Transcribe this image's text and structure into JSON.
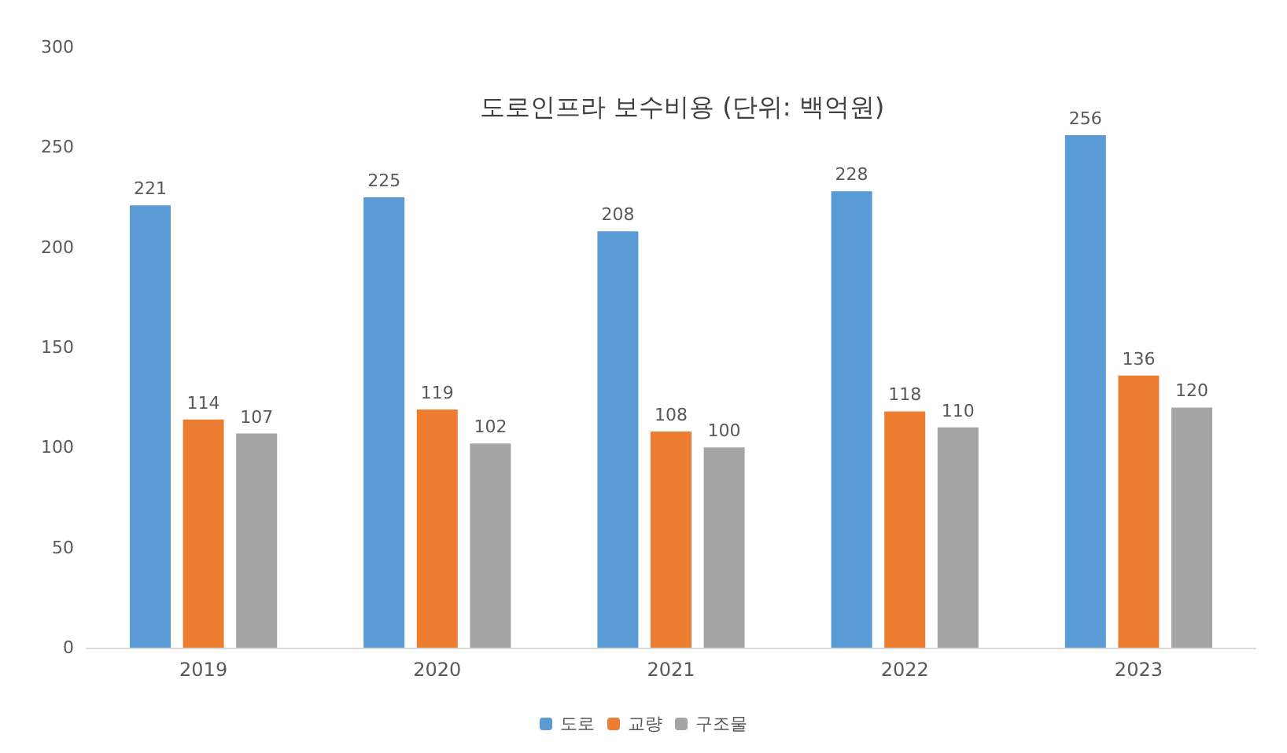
{
  "chart_data": {
    "type": "bar",
    "title": "도로인프라 보수비용 (단위: 백억원)",
    "categories": [
      "2019",
      "2020",
      "2021",
      "2022",
      "2023"
    ],
    "series": [
      {
        "name": "도로",
        "color": "#5b9bd5",
        "values": [
          221,
          225,
          208,
          228,
          256
        ]
      },
      {
        "name": "교량",
        "color": "#ed7d31",
        "values": [
          114,
          119,
          108,
          118,
          136
        ]
      },
      {
        "name": "구조물",
        "color": "#a5a5a5",
        "values": [
          107,
          102,
          100,
          110,
          120
        ]
      }
    ],
    "ylim": [
      0,
      300
    ],
    "yticks": [
      0,
      50,
      100,
      150,
      200,
      250,
      300
    ],
    "grid": false,
    "legend": "bottom",
    "data_labels": true
  }
}
